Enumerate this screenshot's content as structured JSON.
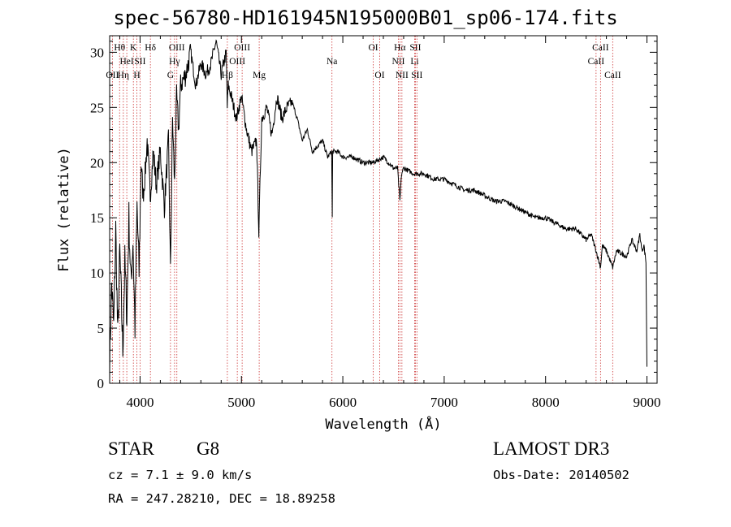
{
  "title": "spec-56780-HD161945N195000B01_sp06-174.fits",
  "info": {
    "class": "STAR",
    "subclass": "G8",
    "survey": "LAMOST DR3",
    "cz": "cz = 7.1 ± 9.0 km/s",
    "obs_date": "Obs-Date: 20140502",
    "radec": "RA = 247.28210, DEC =  18.89258"
  },
  "colors": {
    "line": "#000000",
    "marker": "#cc3333",
    "axis": "#000000"
  },
  "chart_data": {
    "type": "line",
    "title": "spec-56780-HD161945N195000B01_sp06-174.fits",
    "xlabel": "Wavelength (Å)",
    "ylabel": "Flux (relative)",
    "xlim": [
      3700,
      9100
    ],
    "ylim": [
      0,
      31.5
    ],
    "xticks": [
      4000,
      5000,
      6000,
      7000,
      8000,
      9000
    ],
    "yticks": [
      0,
      5,
      10,
      15,
      20,
      25,
      30
    ],
    "grid": false,
    "series": [
      {
        "x": [
          3700,
          3720,
          3740,
          3760,
          3780,
          3800,
          3830,
          3850,
          3870,
          3890,
          3910,
          3930,
          3950,
          3970,
          3990,
          4010,
          4030,
          4050,
          4070,
          4100,
          4130,
          4160,
          4200,
          4240,
          4280,
          4300,
          4320,
          4340,
          4360,
          4380,
          4400,
          4450,
          4500,
          4550,
          4600,
          4650,
          4700,
          4750,
          4800,
          4850,
          4860,
          4870,
          4900,
          4950,
          5000,
          5050,
          5100,
          5150,
          5172,
          5183,
          5200,
          5250,
          5300,
          5350,
          5400,
          5450,
          5500,
          5550,
          5600,
          5650,
          5700,
          5800,
          5850,
          5890,
          5896,
          5900,
          5950,
          6000,
          6100,
          6200,
          6300,
          6400,
          6500,
          6540,
          6563,
          6580,
          6600,
          6700,
          6800,
          6900,
          7000,
          7100,
          7200,
          7300,
          7400,
          7500,
          7600,
          7700,
          7800,
          7900,
          8000,
          8100,
          8200,
          8300,
          8400,
          8450,
          8498,
          8542,
          8560,
          8600,
          8662,
          8700,
          8800,
          8850,
          8900,
          8930,
          8950,
          8970,
          8990,
          9000
        ],
        "y": [
          2,
          9,
          5,
          14,
          4,
          12,
          3,
          11,
          6,
          15,
          9,
          13,
          5,
          16,
          10,
          20,
          17,
          19,
          22,
          17,
          21,
          18,
          21,
          16,
          22,
          10,
          24,
          18,
          26,
          23,
          27,
          28,
          30,
          27,
          29,
          28,
          29,
          31,
          28,
          30,
          25,
          27,
          26,
          24,
          26,
          23,
          21,
          22,
          13.5,
          18,
          24,
          25,
          22.5,
          26,
          24,
          25,
          25.5,
          24,
          22,
          23,
          21,
          22,
          20.5,
          21,
          15,
          21,
          21,
          20.5,
          20.5,
          20,
          20,
          20.5,
          19.5,
          19.5,
          16.5,
          19,
          19.5,
          19,
          19,
          18.5,
          18.5,
          18,
          17.5,
          17.5,
          17,
          16.5,
          16.5,
          16,
          15.5,
          15,
          15,
          14.5,
          14,
          14,
          13,
          13.5,
          12,
          10.5,
          12.5,
          12,
          10.5,
          12,
          11.5,
          13,
          12,
          13.5,
          12,
          12.5,
          11,
          1.5
        ]
      }
    ],
    "line_markers": [
      {
        "wl": 3727,
        "label": "OII",
        "row": 2
      },
      {
        "wl": 3798,
        "label": "Hθ",
        "row": 0
      },
      {
        "wl": 3835,
        "label": "Hη",
        "row": 2
      },
      {
        "wl": 3869,
        "label": "HeI",
        "row": 1
      },
      {
        "wl": 3934,
        "label": "K",
        "row": 0
      },
      {
        "wl": 3969,
        "label": "H",
        "row": 2
      },
      {
        "wl": 4000,
        "label": "SII",
        "row": 1
      },
      {
        "wl": 4102,
        "label": "Hδ",
        "row": 0
      },
      {
        "wl": 4300,
        "label": "G",
        "row": 2
      },
      {
        "wl": 4340,
        "label": "Hγ",
        "row": 1
      },
      {
        "wl": 4363,
        "label": "OIII",
        "row": 0
      },
      {
        "wl": 4861,
        "label": "Hβ",
        "row": 2
      },
      {
        "wl": 4959,
        "label": "OIII",
        "row": 1
      },
      {
        "wl": 5007,
        "label": "OIII",
        "row": 0
      },
      {
        "wl": 5175,
        "label": "Mg",
        "row": 2
      },
      {
        "wl": 5893,
        "label": "Na",
        "row": 1
      },
      {
        "wl": 6300,
        "label": "OI",
        "row": 0
      },
      {
        "wl": 6364,
        "label": "OI",
        "row": 2
      },
      {
        "wl": 6548,
        "label": "NII",
        "row": 1
      },
      {
        "wl": 6563,
        "label": "Hα",
        "row": 0
      },
      {
        "wl": 6583,
        "label": "NII",
        "row": 2
      },
      {
        "wl": 6708,
        "label": "Li",
        "row": 1
      },
      {
        "wl": 6716,
        "label": "SII",
        "row": 0
      },
      {
        "wl": 6731,
        "label": "SII",
        "row": 2
      },
      {
        "wl": 8498,
        "label": "CaII",
        "row": 1
      },
      {
        "wl": 8542,
        "label": "CaII",
        "row": 0
      },
      {
        "wl": 8662,
        "label": "CaII",
        "row": 2
      }
    ]
  }
}
